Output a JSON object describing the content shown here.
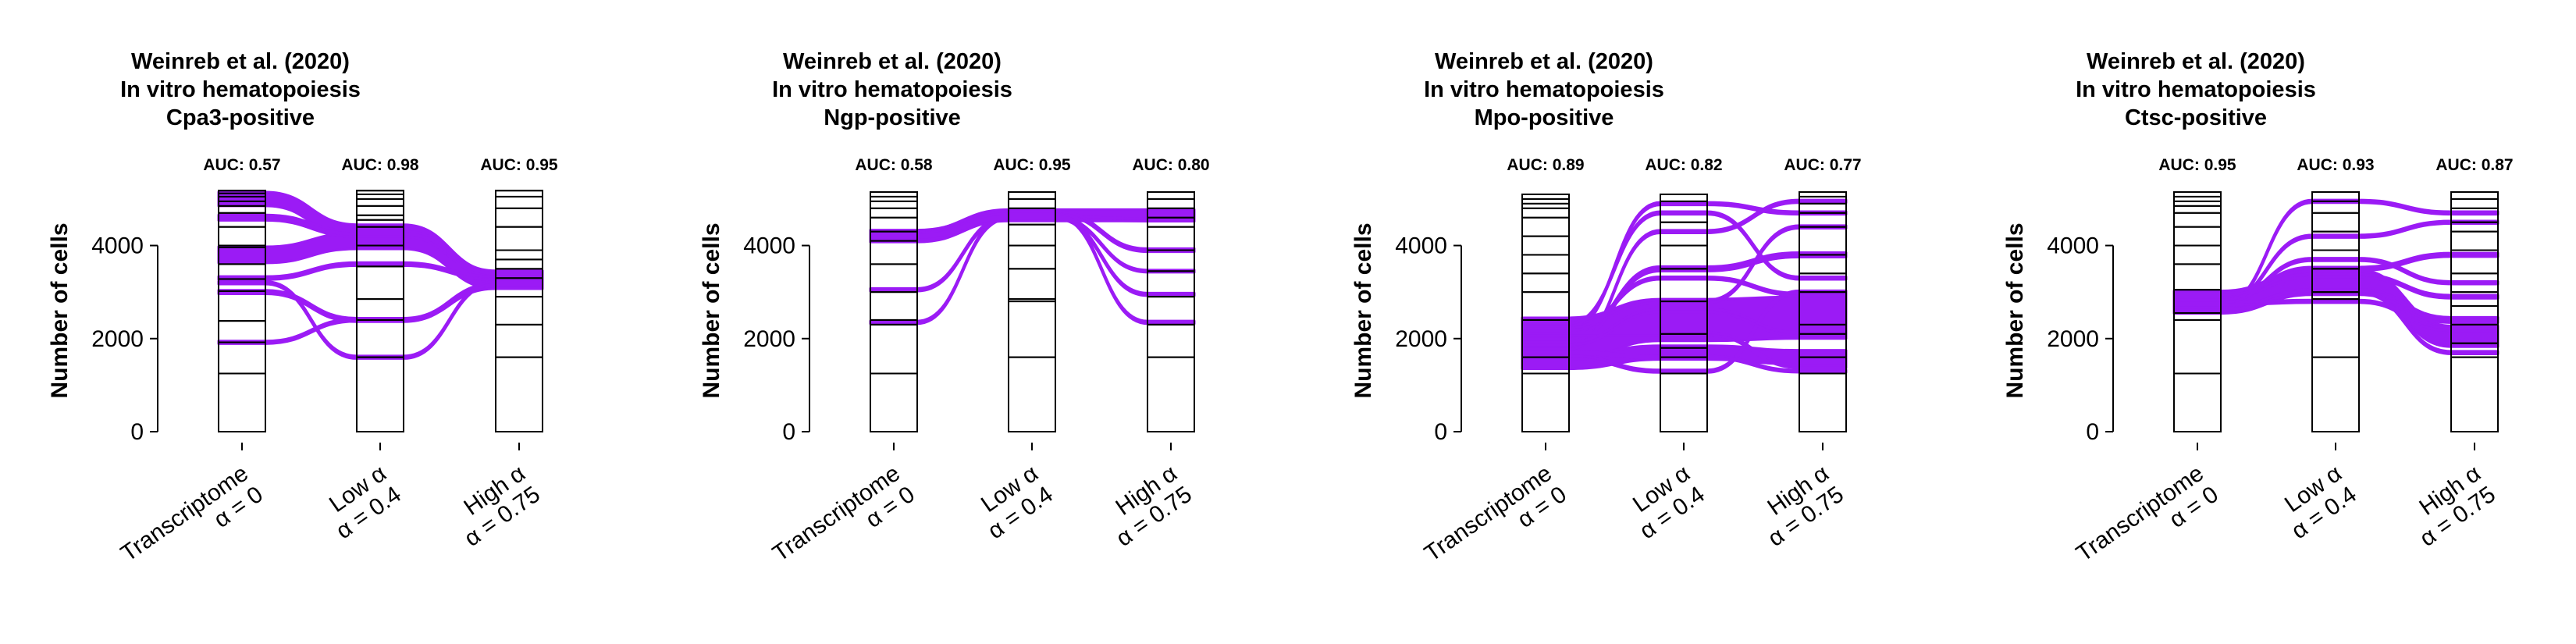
{
  "palette": {
    "flow": "#9b1bf5",
    "flow_minor": "#b0b0b0",
    "stratum_fill": "#ffffff",
    "stratum_stroke": "#000000"
  },
  "chart_data": [
    {
      "type": "alluvial",
      "title": [
        "Weinreb et al. (2020)",
        "In vitro hematopoiesis",
        "Cpa3-positive"
      ],
      "ylabel": "Number of cells",
      "yticks": [
        0,
        2000,
        4000
      ],
      "ylim": [
        0,
        5200
      ],
      "axes": [
        {
          "label": [
            "Transcriptome",
            "α = 0"
          ],
          "auc": "AUC: 0.57"
        },
        {
          "label": [
            "Low α",
            "α = 0.4"
          ],
          "auc": "AUC: 0.98"
        },
        {
          "label": [
            "High α",
            "α = 0.75"
          ],
          "auc": "AUC: 0.95"
        }
      ],
      "strata": [
        [
          0,
          1250,
          1920,
          2380,
          3020,
          3280,
          3600,
          3960,
          4000,
          4400,
          4700,
          4850,
          4950,
          5050,
          5120,
          5180
        ],
        [
          0,
          1600,
          2400,
          2850,
          3550,
          4000,
          4400,
          4550,
          4650,
          4850,
          5000,
          5100,
          5180
        ],
        [
          0,
          1600,
          2300,
          2900,
          3300,
          3500,
          3700,
          3900,
          4400,
          4800,
          5050,
          5180
        ]
      ],
      "flows": [
        [
          5000,
          4300,
          3300,
          300
        ],
        [
          3800,
          4100,
          3250,
          350
        ],
        [
          3000,
          2400,
          3150,
          80
        ],
        [
          1920,
          2400,
          3100,
          60
        ],
        [
          3200,
          1600,
          3200,
          60
        ],
        [
          4600,
          4250,
          3400,
          120
        ],
        [
          3300,
          3600,
          3300,
          70
        ]
      ]
    },
    {
      "type": "alluvial",
      "title": [
        "Weinreb et al. (2020)",
        "In vitro hematopoiesis",
        "Ngp-positive"
      ],
      "ylabel": "Number of cells",
      "yticks": [
        0,
        2000,
        4000
      ],
      "ylim": [
        0,
        5200
      ],
      "axes": [
        {
          "label": [
            "Transcriptome",
            "α = 0"
          ],
          "auc": "AUC: 0.58"
        },
        {
          "label": [
            "Low α",
            "α = 0.4"
          ],
          "auc": "AUC: 0.95"
        },
        {
          "label": [
            "High α",
            "α = 0.75"
          ],
          "auc": "AUC: 0.80"
        }
      ],
      "strata": [
        [
          0,
          1250,
          2300,
          2400,
          3000,
          3600,
          4100,
          4300,
          4600,
          4800,
          4950,
          5050,
          5150
        ],
        [
          0,
          1600,
          2800,
          2850,
          3500,
          4000,
          4450,
          4800,
          5000,
          5150
        ],
        [
          0,
          1600,
          2300,
          2900,
          3450,
          3900,
          4400,
          4600,
          4800,
          5000,
          5150
        ]
      ],
      "flows": [
        [
          4200,
          4650,
          4650,
          250
        ],
        [
          3050,
          4600,
          4550,
          60
        ],
        [
          2350,
          4600,
          2950,
          60
        ],
        [
          4300,
          4700,
          3900,
          70
        ],
        [
          4200,
          4650,
          2350,
          60
        ],
        [
          4200,
          4600,
          3450,
          50
        ]
      ]
    },
    {
      "type": "alluvial",
      "title": [
        "Weinreb et al. (2020)",
        "In vitro hematopoiesis",
        "Mpo-positive"
      ],
      "ylabel": "Number of cells",
      "yticks": [
        0,
        2000,
        4000
      ],
      "ylim": [
        0,
        5200
      ],
      "axes": [
        {
          "label": [
            "Transcriptome",
            "α = 0"
          ],
          "auc": "AUC: 0.89"
        },
        {
          "label": [
            "Low α",
            "α = 0.4"
          ],
          "auc": "AUC: 0.82"
        },
        {
          "label": [
            "High α",
            "α = 0.75"
          ],
          "auc": "AUC: 0.77"
        }
      ],
      "strata": [
        [
          0,
          1250,
          1600,
          2400,
          3000,
          3400,
          3800,
          4200,
          4600,
          4800,
          4900,
          5000,
          5100
        ],
        [
          0,
          1250,
          1600,
          1800,
          2100,
          2800,
          3500,
          4000,
          4500,
          4950,
          5100
        ],
        [
          0,
          1250,
          1600,
          2100,
          2300,
          3000,
          3400,
          3800,
          4400,
          4700,
          4900,
          5050,
          5150
        ]
      ],
      "flows": [
        [
          2000,
          2400,
          2450,
          900
        ],
        [
          1500,
          1700,
          1600,
          300
        ],
        [
          2200,
          4900,
          4700,
          60
        ],
        [
          1800,
          4300,
          4950,
          60
        ],
        [
          2000,
          3500,
          3800,
          100
        ],
        [
          2300,
          2800,
          4400,
          60
        ],
        [
          1600,
          1300,
          3000,
          60
        ],
        [
          2100,
          2100,
          1400,
          60
        ],
        [
          2200,
          3300,
          2950,
          60
        ],
        [
          1900,
          2600,
          2100,
          70
        ],
        [
          2300,
          4700,
          3300,
          60
        ],
        [
          1700,
          1600,
          1300,
          50
        ]
      ]
    },
    {
      "type": "alluvial",
      "title": [
        "Weinreb et al. (2020)",
        "In vitro hematopoiesis",
        "Ctsc-positive"
      ],
      "ylabel": "Number of cells",
      "yticks": [
        0,
        2000,
        4000
      ],
      "ylim": [
        0,
        5200
      ],
      "axes": [
        {
          "label": [
            "Transcriptome",
            "α = 0"
          ],
          "auc": "AUC: 0.95"
        },
        {
          "label": [
            "Low α",
            "α = 0.4"
          ],
          "auc": "AUC: 0.93"
        },
        {
          "label": [
            "High α",
            "α = 0.75"
          ],
          "auc": "AUC: 0.87"
        }
      ],
      "strata": [
        [
          0,
          1250,
          2400,
          2550,
          3050,
          3600,
          4000,
          4400,
          4700,
          4850,
          4950,
          5050,
          5150
        ],
        [
          0,
          1600,
          2850,
          3000,
          3500,
          3900,
          4300,
          4700,
          4950,
          5150
        ],
        [
          0,
          1600,
          1900,
          2300,
          2700,
          3000,
          3400,
          3900,
          4300,
          4500,
          4800,
          5000,
          5150
        ]
      ],
      "flows": [
        [
          2800,
          3250,
          2050,
          450
        ],
        [
          2600,
          3000,
          2400,
          120
        ],
        [
          2850,
          3500,
          3800,
          80
        ],
        [
          2700,
          4950,
          4700,
          60
        ],
        [
          2750,
          4200,
          4500,
          60
        ],
        [
          2650,
          3000,
          1700,
          60
        ],
        [
          2900,
          3350,
          2900,
          70
        ],
        [
          2750,
          2800,
          2200,
          60
        ],
        [
          2800,
          3700,
          3200,
          60
        ]
      ]
    }
  ]
}
